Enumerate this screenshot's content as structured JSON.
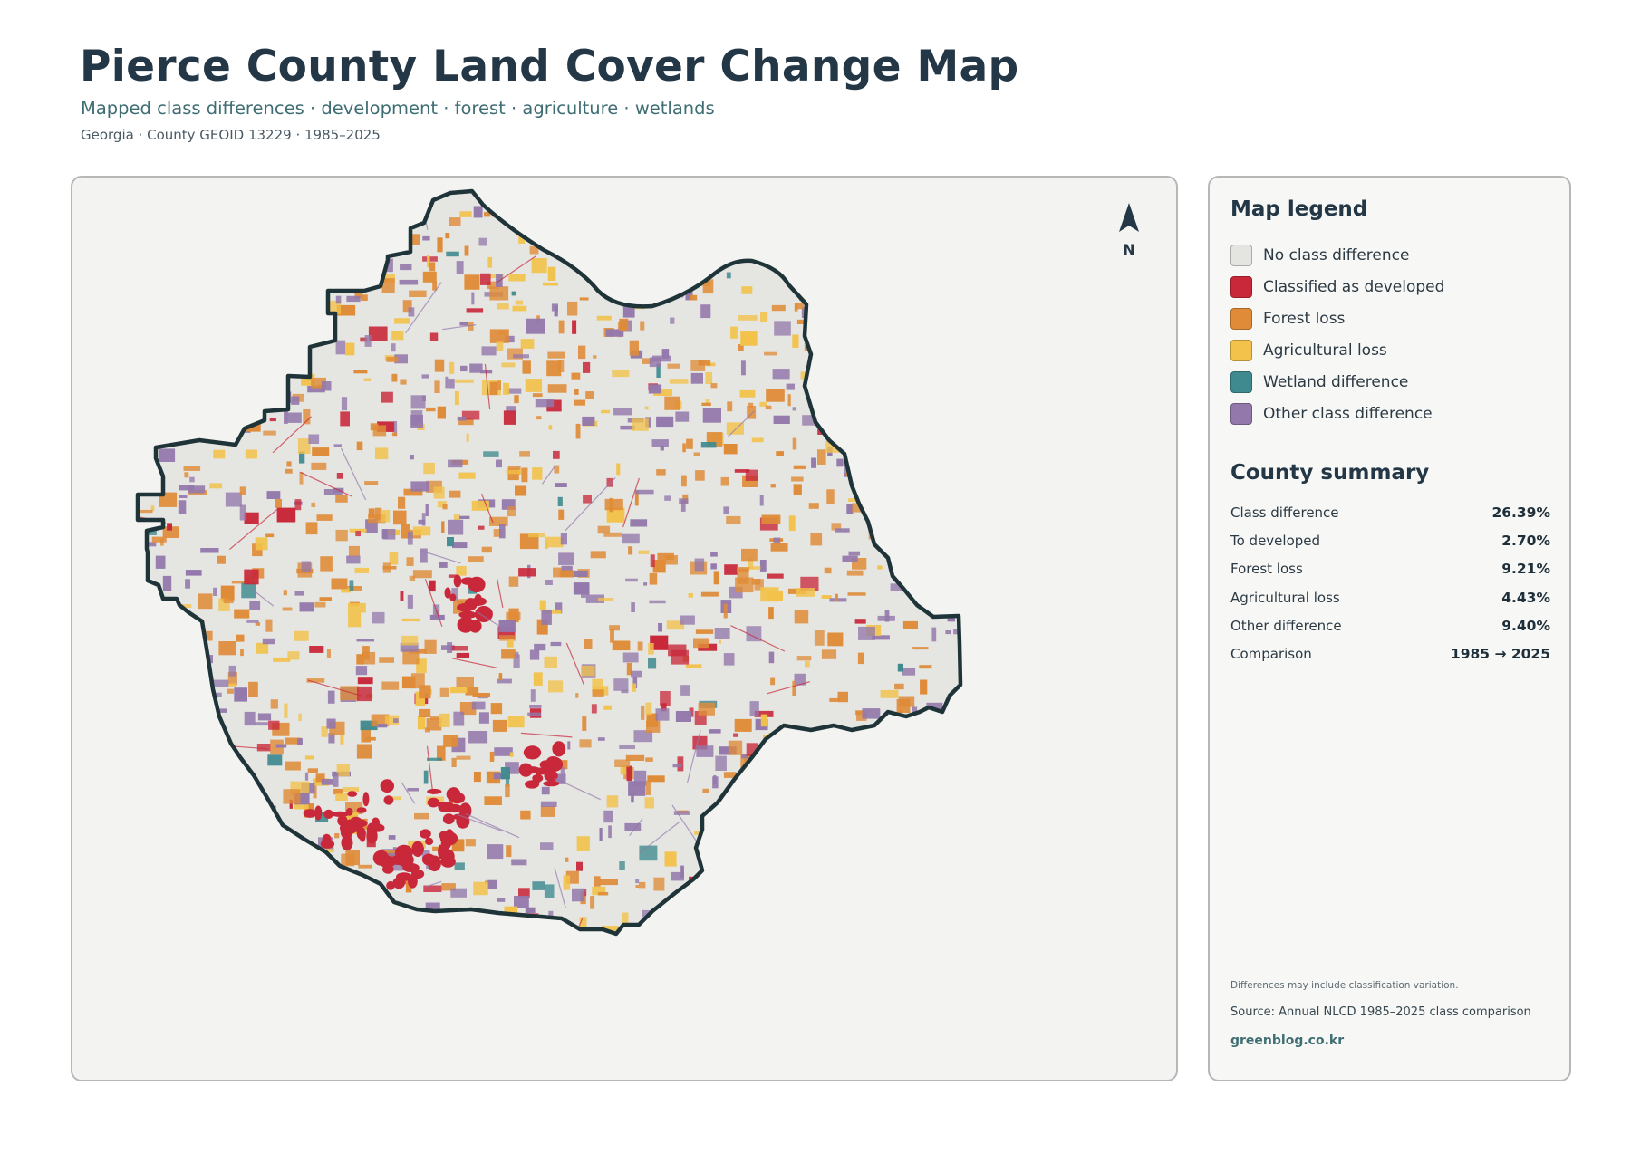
{
  "header": {
    "title": "Pierce County Land Cover Change Map",
    "subtitle": "Mapped class differences · development · forest · agriculture · wetlands",
    "meta": "Georgia · County GEOID 13229 · 1985–2025"
  },
  "map": {
    "north_label": "N",
    "county_fill": "#e5e5e2",
    "outline_color": "#1f3438",
    "class_colors": {
      "developed": "#c8283a",
      "forest_loss": "#df8b37",
      "agricultural_loss": "#f2c24a",
      "wetland": "#3f8a8f",
      "other": "#9378ab"
    }
  },
  "legend": {
    "title": "Map legend",
    "items": [
      {
        "label": "No class difference",
        "color": "#e4e4e1"
      },
      {
        "label": "Classified as developed",
        "color": "#c8283a"
      },
      {
        "label": "Forest loss",
        "color": "#df8b37"
      },
      {
        "label": "Agricultural loss",
        "color": "#f2c24a"
      },
      {
        "label": "Wetland difference",
        "color": "#3f8a8f"
      },
      {
        "label": "Other class difference",
        "color": "#9378ab"
      }
    ]
  },
  "summary": {
    "title": "County summary",
    "rows": [
      {
        "label": "Class difference",
        "value": "26.39%"
      },
      {
        "label": "To developed",
        "value": "2.70%"
      },
      {
        "label": "Forest loss",
        "value": "9.21%"
      },
      {
        "label": "Agricultural loss",
        "value": "4.43%"
      },
      {
        "label": "Other difference",
        "value": "9.40%"
      },
      {
        "label": "Comparison",
        "value": "1985 → 2025"
      }
    ]
  },
  "footer": {
    "note": "Differences may include classification variation.",
    "source": "Source: Annual NLCD 1985–2025 class comparison",
    "site": "greenblog.co.kr"
  }
}
